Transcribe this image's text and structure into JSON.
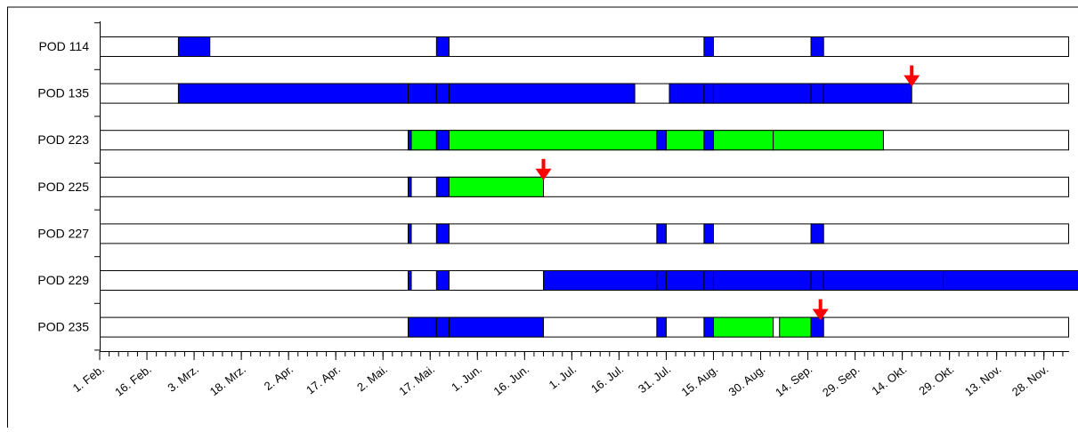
{
  "chart_data": {
    "type": "gantt",
    "title": "",
    "xlabel": "",
    "ylabel": "",
    "x_axis": {
      "type": "date",
      "range": [
        "2008-02-01",
        "2008-12-05"
      ],
      "tick_labels": [
        "1. Feb.",
        "16. Feb.",
        "3. Mrz.",
        "18. Mrz.",
        "2. Apr.",
        "17. Apr.",
        "2. Mai.",
        "17. Mai.",
        "1. Jun.",
        "16. Jun.",
        "1. Jul.",
        "16. Jul.",
        "31. Jul.",
        "15. Aug.",
        "30. Aug.",
        "14. Sep.",
        "29. Sep.",
        "14. Okt.",
        "29. Okt.",
        "13. Nov.",
        "28. Nov."
      ],
      "minor_tick_interval_days": 3
    },
    "legend": "none",
    "colors": {
      "blue": "#0000ff",
      "green": "#00ff00",
      "marker": "#ff0000",
      "empty": "#ffffff"
    },
    "rows": [
      {
        "label": "POD 114",
        "segments": [
          {
            "start": "2008-02-26",
            "end": "2008-03-07",
            "color": "blue"
          },
          {
            "start": "2008-05-18",
            "end": "2008-05-22",
            "color": "blue"
          },
          {
            "start": "2008-08-11",
            "end": "2008-08-14",
            "color": "blue"
          },
          {
            "start": "2008-09-14",
            "end": "2008-09-18",
            "color": "blue"
          }
        ]
      },
      {
        "label": "POD 135",
        "segments": [
          {
            "start": "2008-02-26",
            "end": "2008-05-09",
            "color": "blue"
          },
          {
            "start": "2008-05-09",
            "end": "2008-05-18",
            "color": "blue"
          },
          {
            "start": "2008-05-18",
            "end": "2008-05-22",
            "color": "blue"
          },
          {
            "start": "2008-05-22",
            "end": "2008-07-20",
            "color": "blue"
          },
          {
            "start": "2008-07-31",
            "end": "2008-08-11",
            "color": "blue"
          },
          {
            "start": "2008-08-11",
            "end": "2008-08-14",
            "color": "blue"
          },
          {
            "start": "2008-08-14",
            "end": "2008-09-14",
            "color": "blue"
          },
          {
            "start": "2008-09-14",
            "end": "2008-09-18",
            "color": "blue"
          },
          {
            "start": "2008-09-18",
            "end": "2008-10-16",
            "color": "blue"
          }
        ],
        "marker": "2008-10-16"
      },
      {
        "label": "POD 223",
        "segments": [
          {
            "start": "2008-05-09",
            "end": "2008-05-10",
            "color": "blue"
          },
          {
            "start": "2008-05-10",
            "end": "2008-05-18",
            "color": "green"
          },
          {
            "start": "2008-05-18",
            "end": "2008-05-22",
            "color": "blue"
          },
          {
            "start": "2008-05-22",
            "end": "2008-07-27",
            "color": "green"
          },
          {
            "start": "2008-07-27",
            "end": "2008-07-30",
            "color": "blue"
          },
          {
            "start": "2008-07-30",
            "end": "2008-08-14",
            "color": "green"
          },
          {
            "start": "2008-08-11",
            "end": "2008-08-14",
            "color": "blue"
          },
          {
            "start": "2008-08-14",
            "end": "2008-09-02",
            "color": "green"
          },
          {
            "start": "2008-09-02",
            "end": "2008-10-07",
            "color": "green"
          }
        ]
      },
      {
        "label": "POD 225",
        "segments": [
          {
            "start": "2008-05-09",
            "end": "2008-05-10",
            "color": "blue"
          },
          {
            "start": "2008-05-18",
            "end": "2008-05-22",
            "color": "blue"
          },
          {
            "start": "2008-05-22",
            "end": "2008-06-21",
            "color": "green"
          }
        ],
        "marker": "2008-06-21"
      },
      {
        "label": "POD 227",
        "segments": [
          {
            "start": "2008-05-09",
            "end": "2008-05-10",
            "color": "blue"
          },
          {
            "start": "2008-05-18",
            "end": "2008-05-22",
            "color": "blue"
          },
          {
            "start": "2008-07-27",
            "end": "2008-07-30",
            "color": "blue"
          },
          {
            "start": "2008-08-11",
            "end": "2008-08-14",
            "color": "blue"
          },
          {
            "start": "2008-09-14",
            "end": "2008-09-18",
            "color": "blue"
          }
        ]
      },
      {
        "label": "POD 229",
        "segments": [
          {
            "start": "2008-05-09",
            "end": "2008-05-10",
            "color": "blue"
          },
          {
            "start": "2008-05-18",
            "end": "2008-05-22",
            "color": "blue"
          },
          {
            "start": "2008-06-21",
            "end": "2008-07-27",
            "color": "blue"
          },
          {
            "start": "2008-07-27",
            "end": "2008-07-30",
            "color": "blue"
          },
          {
            "start": "2008-07-30",
            "end": "2008-08-11",
            "color": "blue"
          },
          {
            "start": "2008-08-11",
            "end": "2008-08-14",
            "color": "blue"
          },
          {
            "start": "2008-08-14",
            "end": "2008-09-14",
            "color": "blue"
          },
          {
            "start": "2008-09-14",
            "end": "2008-09-18",
            "color": "blue"
          },
          {
            "start": "2008-09-18",
            "end": "2008-10-26",
            "color": "blue"
          },
          {
            "start": "2008-10-26",
            "end": "2008-12-09",
            "color": "blue"
          }
        ]
      },
      {
        "label": "POD 235",
        "segments": [
          {
            "start": "2008-05-09",
            "end": "2008-05-18",
            "color": "blue"
          },
          {
            "start": "2008-05-18",
            "end": "2008-05-22",
            "color": "blue"
          },
          {
            "start": "2008-05-22",
            "end": "2008-06-21",
            "color": "blue"
          },
          {
            "start": "2008-07-27",
            "end": "2008-07-30",
            "color": "blue"
          },
          {
            "start": "2008-08-11",
            "end": "2008-08-14",
            "color": "blue"
          },
          {
            "start": "2008-08-14",
            "end": "2008-09-02",
            "color": "green"
          },
          {
            "start": "2008-09-04",
            "end": "2008-09-14",
            "color": "green"
          },
          {
            "start": "2008-09-14",
            "end": "2008-09-18",
            "color": "blue"
          }
        ],
        "marker": "2008-09-17"
      }
    ]
  }
}
